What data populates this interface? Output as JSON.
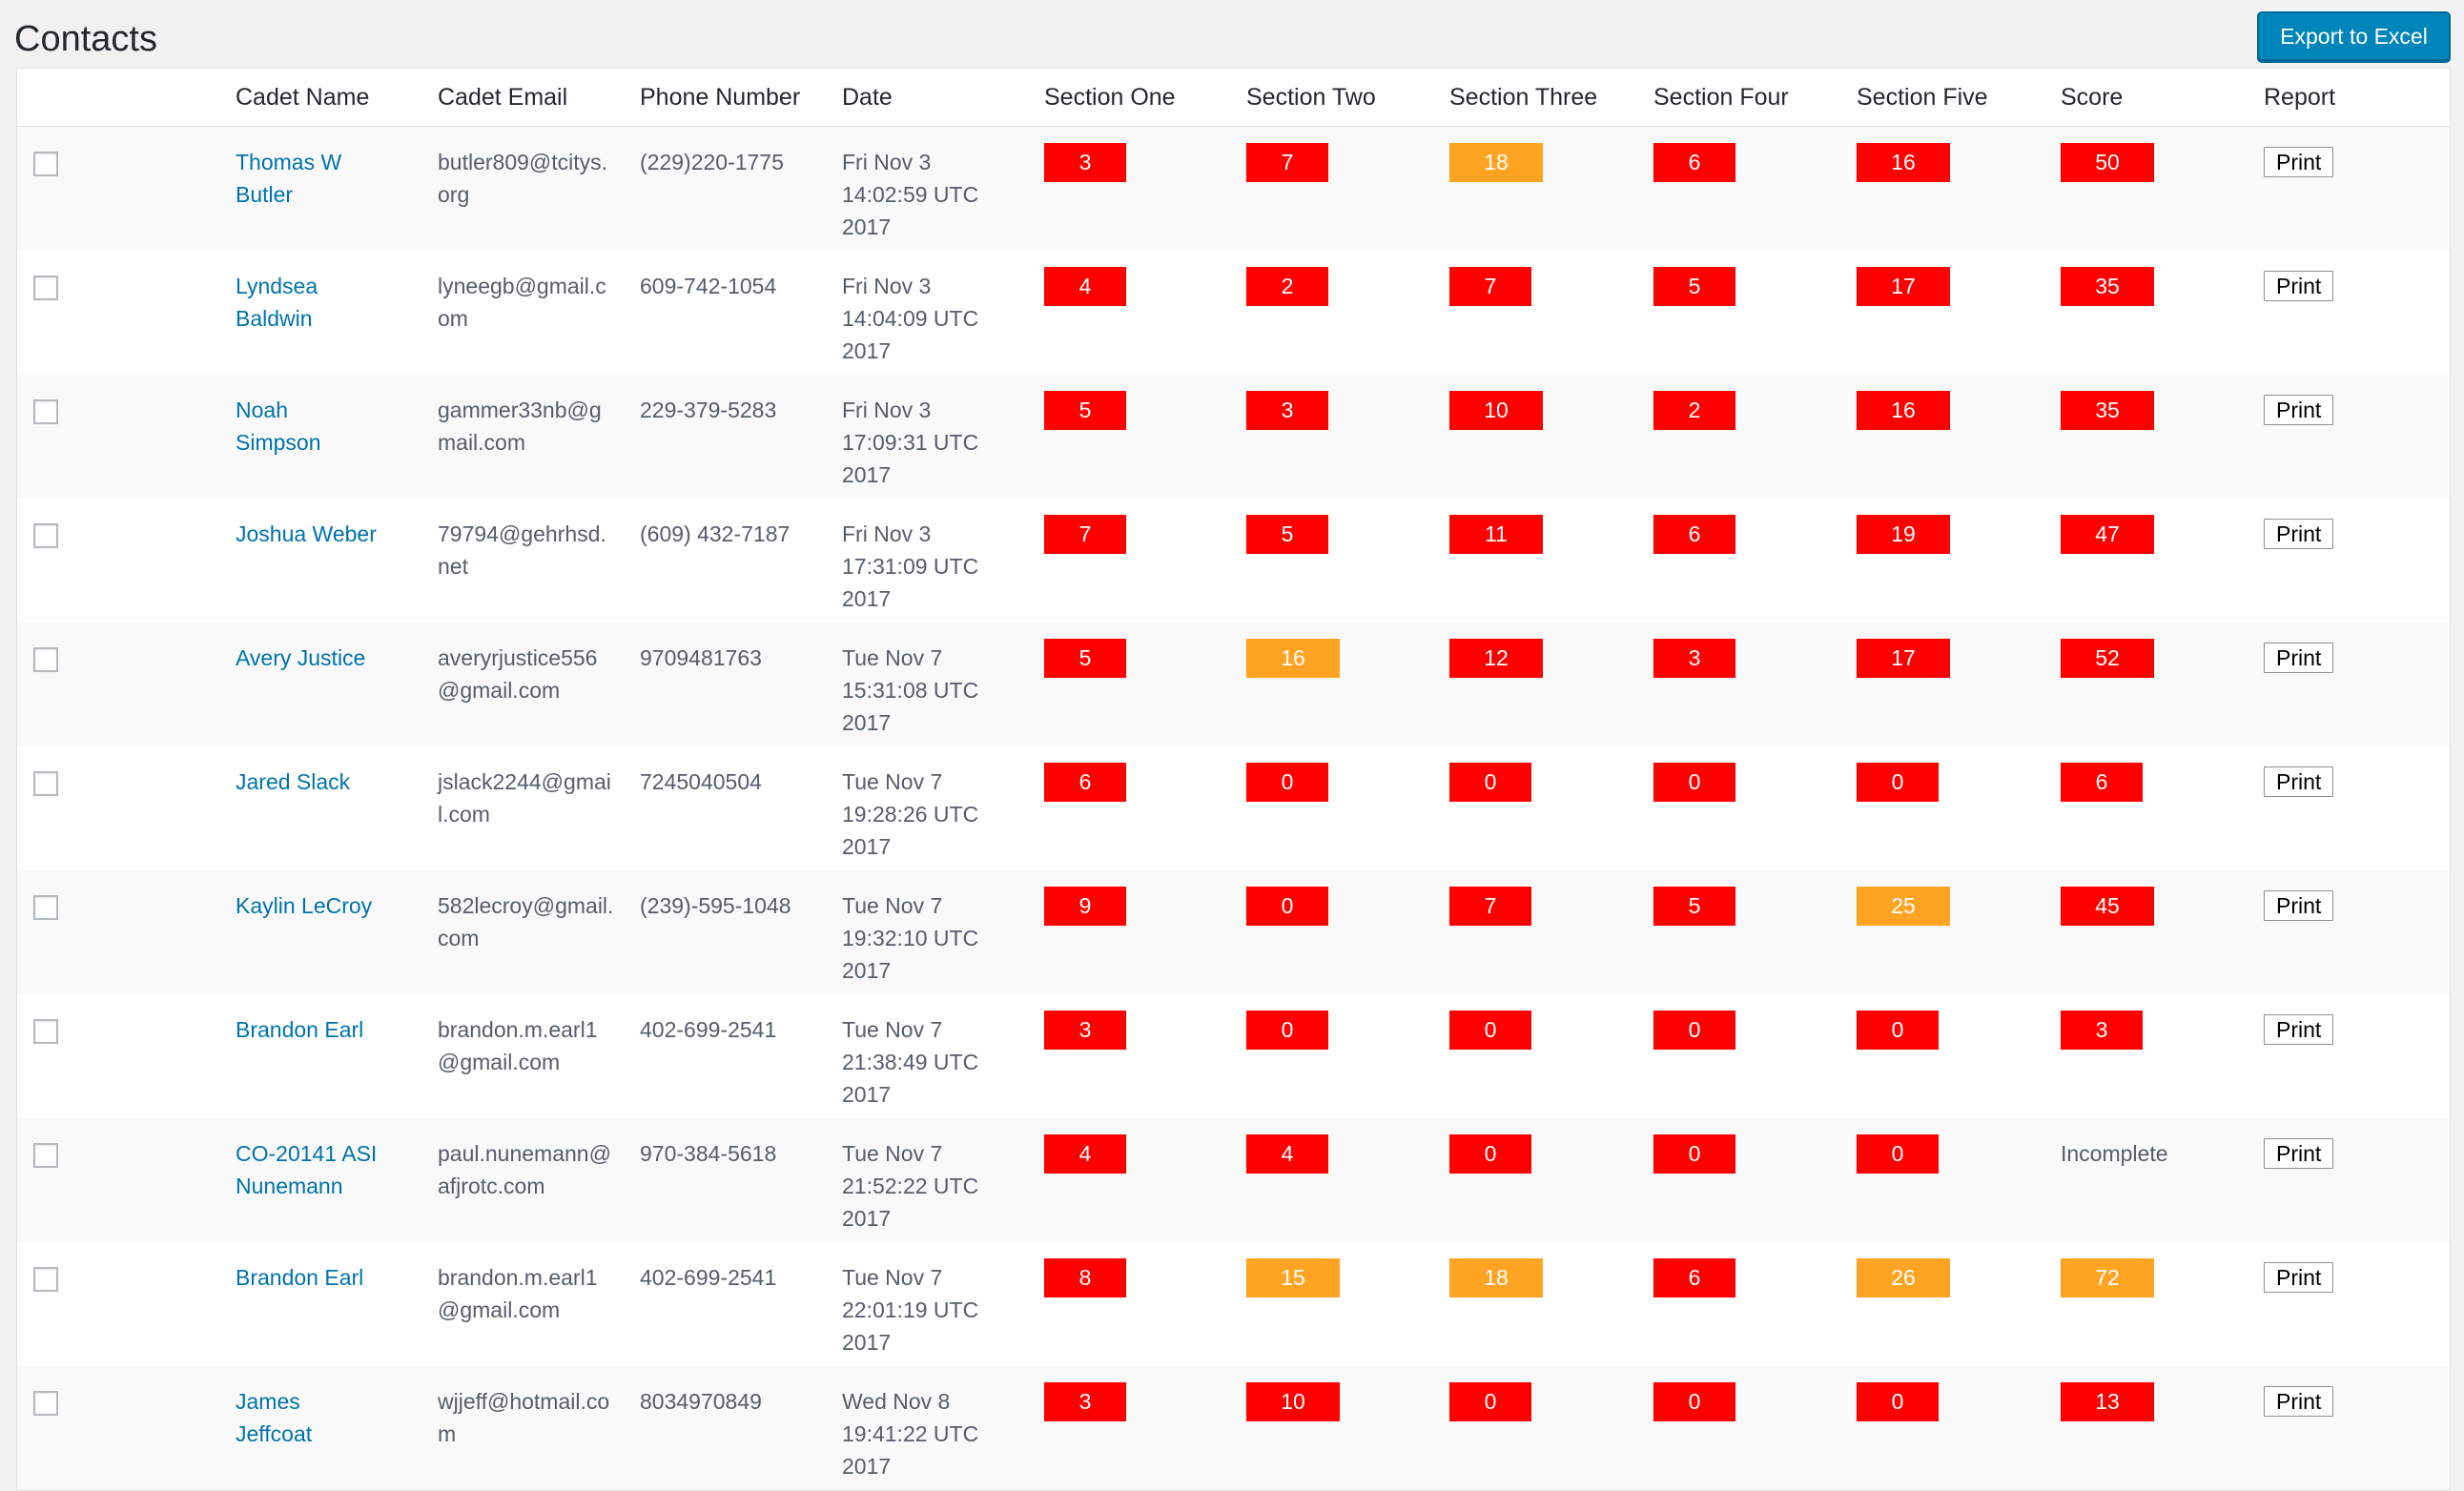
{
  "page": {
    "title": "Contacts",
    "export_label": "Export to Excel"
  },
  "colors": {
    "badge_red": "#ff0000",
    "badge_orange": "#ffa323",
    "link": "#0073aa",
    "button_primary": "#0085ba"
  },
  "columns": [
    "",
    "Cadet Name",
    "Cadet Email",
    "Phone Number",
    "Date",
    "Section One",
    "Section Two",
    "Section Three",
    "Section Four",
    "Section Five",
    "Score",
    "Report"
  ],
  "print_label": "Print",
  "rows": [
    {
      "name": "Thomas W Butler",
      "email": "butler809@tcitys.org",
      "phone": "(229)220-1775",
      "date": "Fri Nov 3 14:02:59 UTC 2017",
      "sections": [
        {
          "v": "3",
          "c": "red"
        },
        {
          "v": "7",
          "c": "red"
        },
        {
          "v": "18",
          "c": "orange"
        },
        {
          "v": "6",
          "c": "red"
        },
        {
          "v": "16",
          "c": "red"
        }
      ],
      "score": {
        "v": "50",
        "c": "red"
      }
    },
    {
      "name": "Lyndsea Baldwin",
      "email": "lyneegb@gmail.com",
      "phone": "609-742-1054",
      "date": "Fri Nov 3 14:04:09 UTC 2017",
      "sections": [
        {
          "v": "4",
          "c": "red"
        },
        {
          "v": "2",
          "c": "red"
        },
        {
          "v": "7",
          "c": "red"
        },
        {
          "v": "5",
          "c": "red"
        },
        {
          "v": "17",
          "c": "red"
        }
      ],
      "score": {
        "v": "35",
        "c": "red"
      }
    },
    {
      "name": "Noah Simpson",
      "email": "gammer33nb@gmail.com",
      "phone": "229-379-5283",
      "date": "Fri Nov 3 17:09:31 UTC 2017",
      "sections": [
        {
          "v": "5",
          "c": "red"
        },
        {
          "v": "3",
          "c": "red"
        },
        {
          "v": "10",
          "c": "red"
        },
        {
          "v": "2",
          "c": "red"
        },
        {
          "v": "16",
          "c": "red"
        }
      ],
      "score": {
        "v": "35",
        "c": "red"
      }
    },
    {
      "name": "Joshua Weber",
      "email": "79794@gehrhsd.net",
      "phone": "(609) 432-7187",
      "date": "Fri Nov 3 17:31:09 UTC 2017",
      "sections": [
        {
          "v": "7",
          "c": "red"
        },
        {
          "v": "5",
          "c": "red"
        },
        {
          "v": "11",
          "c": "red"
        },
        {
          "v": "6",
          "c": "red"
        },
        {
          "v": "19",
          "c": "red"
        }
      ],
      "score": {
        "v": "47",
        "c": "red"
      }
    },
    {
      "name": "Avery Justice",
      "email": "averyrjustice556@gmail.com",
      "phone": "9709481763",
      "date": "Tue Nov 7 15:31:08 UTC 2017",
      "sections": [
        {
          "v": "5",
          "c": "red"
        },
        {
          "v": "16",
          "c": "orange"
        },
        {
          "v": "12",
          "c": "red"
        },
        {
          "v": "3",
          "c": "red"
        },
        {
          "v": "17",
          "c": "red"
        }
      ],
      "score": {
        "v": "52",
        "c": "red"
      }
    },
    {
      "name": "Jared Slack",
      "email": "jslack2244@gmail.com",
      "phone": "7245040504",
      "date": "Tue Nov 7 19:28:26 UTC 2017",
      "sections": [
        {
          "v": "6",
          "c": "red"
        },
        {
          "v": "0",
          "c": "red"
        },
        {
          "v": "0",
          "c": "red"
        },
        {
          "v": "0",
          "c": "red"
        },
        {
          "v": "0",
          "c": "red"
        }
      ],
      "score": {
        "v": "6",
        "c": "red"
      }
    },
    {
      "name": "Kaylin LeCroy",
      "email": "582lecroy@gmail.com",
      "phone": "(239)-595-1048",
      "date": "Tue Nov 7 19:32:10 UTC 2017",
      "sections": [
        {
          "v": "9",
          "c": "red"
        },
        {
          "v": "0",
          "c": "red"
        },
        {
          "v": "7",
          "c": "red"
        },
        {
          "v": "5",
          "c": "red"
        },
        {
          "v": "25",
          "c": "orange"
        }
      ],
      "score": {
        "v": "45",
        "c": "red"
      }
    },
    {
      "name": "Brandon Earl",
      "email": "brandon.m.earl1@gmail.com",
      "phone": "402-699-2541",
      "date": "Tue Nov 7 21:38:49 UTC 2017",
      "sections": [
        {
          "v": "3",
          "c": "red"
        },
        {
          "v": "0",
          "c": "red"
        },
        {
          "v": "0",
          "c": "red"
        },
        {
          "v": "0",
          "c": "red"
        },
        {
          "v": "0",
          "c": "red"
        }
      ],
      "score": {
        "v": "3",
        "c": "red"
      }
    },
    {
      "name": "CO-20141 ASI Nunemann",
      "email": "paul.nunemann@afjrotc.com",
      "phone": "970-384-5618",
      "date": "Tue Nov 7 21:52:22 UTC 2017",
      "sections": [
        {
          "v": "4",
          "c": "red"
        },
        {
          "v": "4",
          "c": "red"
        },
        {
          "v": "0",
          "c": "red"
        },
        {
          "v": "0",
          "c": "red"
        },
        {
          "v": "0",
          "c": "red"
        }
      ],
      "score": {
        "v": "Incomplete",
        "c": "none"
      }
    },
    {
      "name": "Brandon Earl",
      "email": "brandon.m.earl1@gmail.com",
      "phone": "402-699-2541",
      "date": "Tue Nov 7 22:01:19 UTC 2017",
      "sections": [
        {
          "v": "8",
          "c": "red"
        },
        {
          "v": "15",
          "c": "orange"
        },
        {
          "v": "18",
          "c": "orange"
        },
        {
          "v": "6",
          "c": "red"
        },
        {
          "v": "26",
          "c": "orange"
        }
      ],
      "score": {
        "v": "72",
        "c": "orange"
      }
    },
    {
      "name": "James Jeffcoat",
      "email": "wjjeff@hotmail.com",
      "phone": "8034970849",
      "date": "Wed Nov 8 19:41:22 UTC 2017",
      "sections": [
        {
          "v": "3",
          "c": "red"
        },
        {
          "v": "10",
          "c": "red"
        },
        {
          "v": "0",
          "c": "red"
        },
        {
          "v": "0",
          "c": "red"
        },
        {
          "v": "0",
          "c": "red"
        }
      ],
      "score": {
        "v": "13",
        "c": "red"
      }
    }
  ]
}
